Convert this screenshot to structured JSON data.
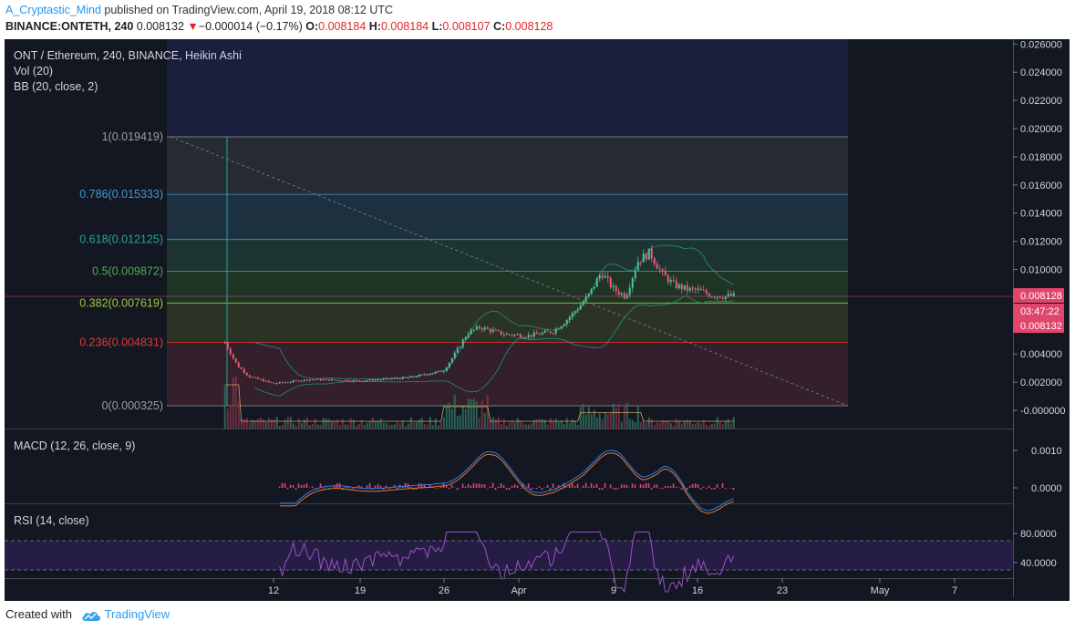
{
  "header": {
    "author": "A_Cryptastic_Mind",
    "published_text": "published on TradingView.com, April 19, 2018 08:12 UTC",
    "symbol": "BINANCE:ONTETH, 240",
    "last": "0.008132",
    "change": "−0.000014 (−0.17%)",
    "o_label": "O:",
    "o_val": "0.008184",
    "h_label": "H:",
    "h_val": "0.008184",
    "l_label": "L:",
    "l_val": "0.008107",
    "c_label": "C:",
    "c_val": "0.008128"
  },
  "legend": {
    "title": "ONT / Ethereum, 240, BINANCE, Heikin Ashi",
    "vol": "Vol (20)",
    "bb": "BB (20, close, 2)",
    "macd": "MACD (12, 26, close, 9)",
    "rsi": "RSI (14, close)"
  },
  "price_scale": {
    "ticks": [
      "0.026000",
      "0.024000",
      "0.022000",
      "0.020000",
      "0.018000",
      "0.016000",
      "0.014000",
      "0.012000",
      "0.010000",
      "0.008000",
      "0.006000",
      "0.004000",
      "0.002000",
      "-0.000000"
    ],
    "last_price": "0.008128",
    "countdown": "03:47:22",
    "last_close": "0.008132"
  },
  "macd_scale": {
    "ticks": [
      "0.0010",
      "0.0000"
    ]
  },
  "rsi_scale": {
    "ticks": [
      "80.0000",
      "40.0000"
    ]
  },
  "time_axis": {
    "labels": [
      "12",
      "19",
      "26",
      "Apr",
      "9",
      "16",
      "23",
      "May",
      "7"
    ]
  },
  "fib_levels": [
    {
      "label": "1(0.019419)",
      "value": 0.019419,
      "color": "#9e9e9e"
    },
    {
      "label": "0.786(0.015333)",
      "value": 0.015333,
      "color": "#3c9ad3"
    },
    {
      "label": "0.618(0.012125)",
      "value": 0.012125,
      "color": "#26a69a"
    },
    {
      "label": "0.5(0.009872)",
      "value": 0.009872,
      "color": "#4caf50"
    },
    {
      "label": "0.382(0.007619)",
      "value": 0.007619,
      "color": "#9acd32"
    },
    {
      "label": "0.236(0.004831)",
      "value": 0.004831,
      "color": "#e53935"
    },
    {
      "label": "0(0.000325)",
      "value": 0.000325,
      "color": "#9e9e9e"
    }
  ],
  "chart_data": {
    "type": "line",
    "title": "ONT / Ethereum, 240, BINANCE, Heikin Ashi",
    "ylim": [
      -0.0005,
      0.0265
    ],
    "x": [
      "2018-03-08",
      "2018-03-09",
      "2018-03-10",
      "2018-03-12",
      "2018-03-15",
      "2018-03-19",
      "2018-03-23",
      "2018-03-26",
      "2018-03-27",
      "2018-03-28",
      "2018-03-29",
      "2018-03-31",
      "2018-04-02",
      "2018-04-04",
      "2018-04-05",
      "2018-04-06",
      "2018-04-07",
      "2018-04-08",
      "2018-04-09",
      "2018-04-10",
      "2018-04-11",
      "2018-04-12",
      "2018-04-13",
      "2018-04-14",
      "2018-04-15",
      "2018-04-16",
      "2018-04-17",
      "2018-04-18",
      "2018-04-19"
    ],
    "series": [
      {
        "name": "ONTETH",
        "values": [
          0.0048,
          0.0032,
          0.0024,
          0.0019,
          0.0022,
          0.0021,
          0.0023,
          0.0028,
          0.0041,
          0.0055,
          0.0059,
          0.0054,
          0.0053,
          0.0056,
          0.0063,
          0.0072,
          0.0082,
          0.0098,
          0.0086,
          0.0081,
          0.0106,
          0.0112,
          0.0097,
          0.0089,
          0.0086,
          0.0085,
          0.0082,
          0.0081,
          0.008128
        ]
      }
    ],
    "grid": false
  }
}
